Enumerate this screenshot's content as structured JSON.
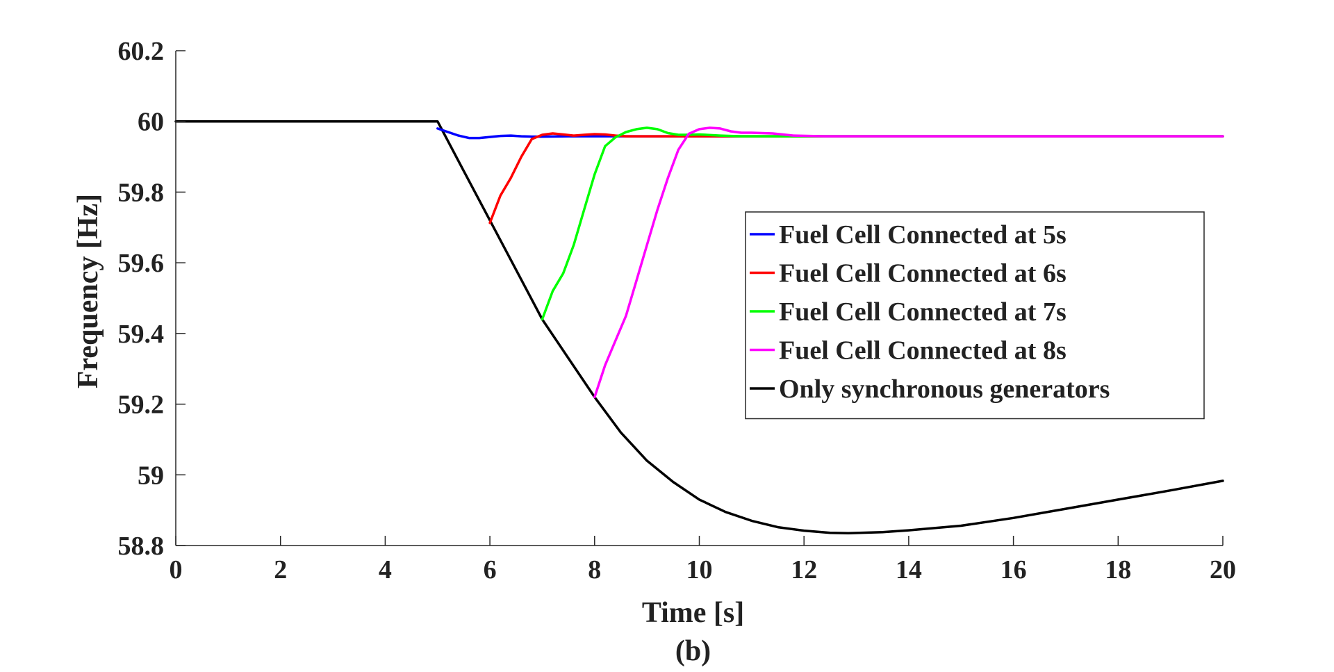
{
  "chart_data": {
    "type": "line",
    "title": "",
    "xlabel": "Time [s]",
    "ylabel": "Frequency [Hz]",
    "caption": "(b)",
    "xlim": [
      0,
      20
    ],
    "ylim": [
      58.8,
      60.2
    ],
    "xticks": [
      0,
      2,
      4,
      6,
      8,
      10,
      12,
      14,
      16,
      18,
      20
    ],
    "xtick_labels": [
      "0",
      "2",
      "4",
      "6",
      "8",
      "10",
      "12",
      "14",
      "16",
      "18",
      "20"
    ],
    "yticks": [
      58.8,
      59,
      59.2,
      59.4,
      59.6,
      59.8,
      60,
      60.2
    ],
    "ytick_labels": [
      "58.8",
      "59",
      "59.2",
      "59.4",
      "59.6",
      "59.8",
      "60",
      "60.2"
    ],
    "grid": false,
    "legend_position": "center-right",
    "series": [
      {
        "name": "Fuel Cell Connected at 5s",
        "color": "#0000ff",
        "x": [
          5.0,
          5.2,
          5.4,
          5.6,
          5.8,
          6.0,
          6.2,
          6.4,
          6.6,
          6.8,
          7.0,
          7.5,
          8.0,
          9.0,
          10.0,
          12.0,
          20.0
        ],
        "y": [
          59.98,
          59.97,
          59.96,
          59.953,
          59.953,
          59.956,
          59.959,
          59.96,
          59.958,
          59.957,
          59.957,
          59.958,
          59.958,
          59.958,
          59.958,
          59.958,
          59.958
        ]
      },
      {
        "name": "Fuel Cell Connected at 6s",
        "color": "#ff0000",
        "x": [
          6.0,
          6.2,
          6.4,
          6.6,
          6.8,
          7.0,
          7.2,
          7.4,
          7.6,
          7.8,
          8.0,
          8.2,
          8.4,
          8.6,
          9.0,
          9.5,
          10.0,
          12.0,
          20.0
        ],
        "y": [
          59.713,
          59.79,
          59.84,
          59.9,
          59.95,
          59.962,
          59.966,
          59.963,
          59.96,
          59.962,
          59.964,
          59.963,
          59.96,
          59.958,
          59.958,
          59.958,
          59.958,
          59.958,
          59.958
        ]
      },
      {
        "name": "Fuel Cell Connected at 7s",
        "color": "#00ff00",
        "x": [
          7.0,
          7.2,
          7.4,
          7.6,
          7.8,
          8.0,
          8.2,
          8.4,
          8.6,
          8.8,
          9.0,
          9.2,
          9.4,
          9.6,
          9.8,
          10.0,
          10.4,
          10.8,
          12.0,
          20.0
        ],
        "y": [
          59.44,
          59.52,
          59.57,
          59.65,
          59.75,
          59.85,
          59.93,
          59.955,
          59.97,
          59.978,
          59.982,
          59.978,
          59.967,
          59.962,
          59.962,
          59.963,
          59.96,
          59.958,
          59.958,
          59.958
        ]
      },
      {
        "name": "Fuel Cell Connected at 8s",
        "color": "#ff00ff",
        "x": [
          8.0,
          8.2,
          8.4,
          8.6,
          8.8,
          9.0,
          9.2,
          9.4,
          9.6,
          9.8,
          10.0,
          10.2,
          10.4,
          10.6,
          10.8,
          11.0,
          11.4,
          11.8,
          12.4,
          20.0
        ],
        "y": [
          59.22,
          59.31,
          59.38,
          59.45,
          59.55,
          59.65,
          59.75,
          59.84,
          59.92,
          59.965,
          59.978,
          59.982,
          59.98,
          59.972,
          59.968,
          59.968,
          59.966,
          59.96,
          59.958,
          59.958
        ]
      },
      {
        "name": "Only synchronous generators",
        "color": "#000000",
        "x": [
          0,
          5.0,
          5.5,
          6.0,
          6.5,
          7.0,
          7.5,
          8.0,
          8.5,
          9.0,
          9.5,
          10.0,
          10.5,
          11.0,
          11.5,
          12.0,
          12.5,
          12.85,
          13.5,
          14.0,
          15.0,
          16.0,
          17.0,
          18.0,
          19.0,
          20.0
        ],
        "y": [
          60.0,
          60.0,
          59.86,
          59.72,
          59.58,
          59.44,
          59.33,
          59.22,
          59.12,
          59.04,
          58.98,
          58.93,
          58.895,
          58.87,
          58.852,
          58.842,
          58.836,
          58.835,
          58.838,
          58.843,
          58.856,
          58.878,
          58.904,
          58.93,
          58.956,
          58.983
        ]
      }
    ]
  }
}
